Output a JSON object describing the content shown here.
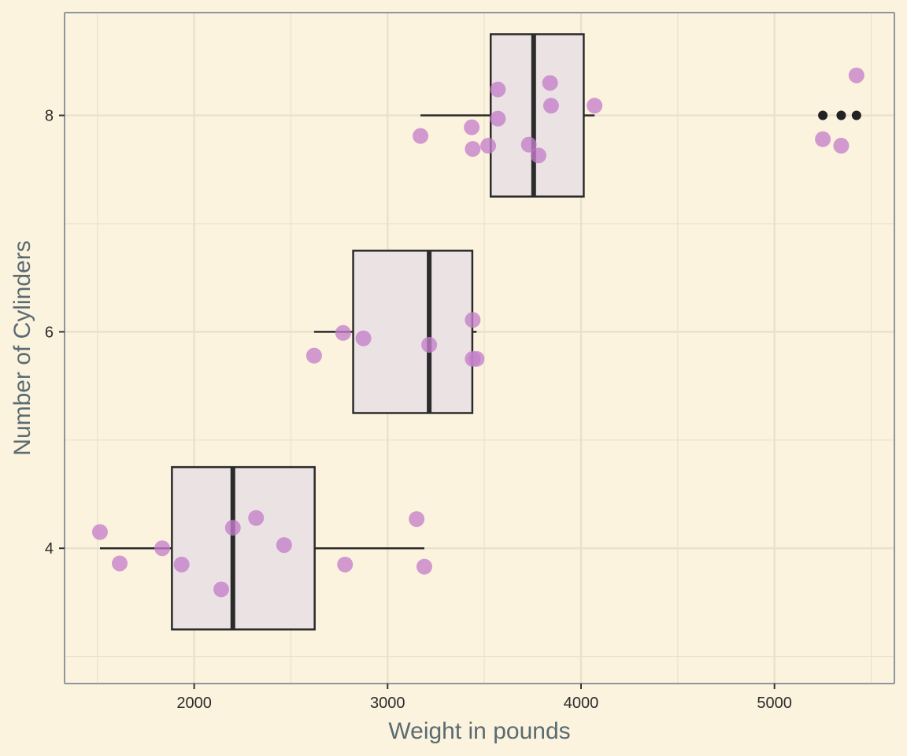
{
  "chart_data": {
    "type": "boxplot",
    "title": "",
    "xlabel": "Weight in pounds",
    "ylabel": "Number of Cylinders",
    "xlim": [
      1330,
      5620
    ],
    "ylim": [
      2.75,
      8.95
    ],
    "x_ticks": [
      2000,
      3000,
      4000,
      5000
    ],
    "y_ticks": [
      4,
      6,
      8
    ],
    "grid": true,
    "colors": {
      "background": "#fcf3de",
      "panel": "#fcf3de",
      "grid": "#e9e1cc",
      "box_fill": "#ebe3e3",
      "box_stroke": "#2b2b2b",
      "points": "#c47fc9",
      "outliers": "#222222",
      "axis": "#8b979b"
    },
    "boxes": [
      {
        "group": 4,
        "whisker_low": 1513,
        "q1": 1885,
        "median": 2200,
        "q3": 2623,
        "whisker_high": 3190,
        "outliers": []
      },
      {
        "group": 6,
        "whisker_low": 2620,
        "q1": 2822,
        "median": 3215,
        "q3": 3438,
        "whisker_high": 3460,
        "outliers": []
      },
      {
        "group": 8,
        "whisker_low": 3170,
        "q1": 3533,
        "median": 3755,
        "q3": 4014,
        "whisker_high": 4070,
        "outliers": [
          5250,
          5345,
          5424
        ]
      }
    ],
    "points": [
      {
        "x": 1513,
        "y": 4.15
      },
      {
        "x": 1615,
        "y": 3.86
      },
      {
        "x": 1835,
        "y": 4.0
      },
      {
        "x": 1935,
        "y": 3.85
      },
      {
        "x": 2140,
        "y": 3.62
      },
      {
        "x": 2200,
        "y": 4.19
      },
      {
        "x": 2320,
        "y": 4.28
      },
      {
        "x": 2465,
        "y": 4.03
      },
      {
        "x": 2780,
        "y": 3.85
      },
      {
        "x": 3150,
        "y": 4.27
      },
      {
        "x": 3190,
        "y": 3.83
      },
      {
        "x": 2620,
        "y": 5.78
      },
      {
        "x": 2770,
        "y": 5.99
      },
      {
        "x": 2875,
        "y": 5.94
      },
      {
        "x": 3215,
        "y": 5.88
      },
      {
        "x": 3440,
        "y": 6.11
      },
      {
        "x": 3440,
        "y": 5.75
      },
      {
        "x": 3460,
        "y": 5.75
      },
      {
        "x": 3170,
        "y": 7.81
      },
      {
        "x": 3435,
        "y": 7.89
      },
      {
        "x": 3440,
        "y": 7.69
      },
      {
        "x": 3520,
        "y": 7.72
      },
      {
        "x": 3570,
        "y": 8.24
      },
      {
        "x": 3570,
        "y": 7.97
      },
      {
        "x": 3730,
        "y": 7.73
      },
      {
        "x": 3780,
        "y": 7.63
      },
      {
        "x": 3840,
        "y": 8.3
      },
      {
        "x": 3845,
        "y": 8.09
      },
      {
        "x": 4070,
        "y": 8.09
      },
      {
        "x": 5250,
        "y": 7.78
      },
      {
        "x": 5345,
        "y": 7.72
      },
      {
        "x": 5424,
        "y": 8.37
      }
    ]
  }
}
